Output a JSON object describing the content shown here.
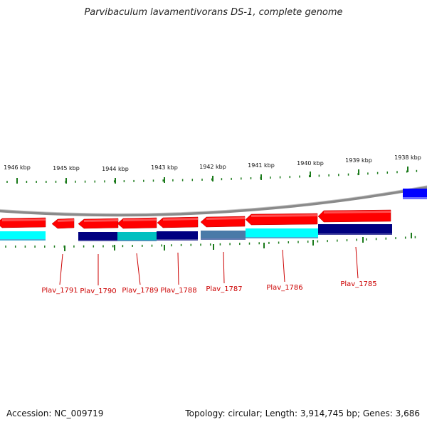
{
  "title": "Parvibaculum lavamentivorans DS-1, complete genome",
  "accession": "Accession: NC_009719",
  "summary": "Topology: circular; Length: 3,914,745 bp; Genes: 3,686",
  "colors": {
    "forward_gene": "#ff0000",
    "backbone": "#8a8a8a",
    "tick": "#1a7a1a",
    "gene_label": "#cc0000",
    "cyan_block": "#00ffff",
    "navy_block": "#000080",
    "teal_block": "#00c0c0",
    "steel_block": "#4a7aa8",
    "blue_block": "#0000ff"
  },
  "kbp_scale": [
    {
      "label": "1946 kbp"
    },
    {
      "label": "1945 kbp"
    },
    {
      "label": "1944 kbp"
    },
    {
      "label": "1943 kbp"
    },
    {
      "label": "1942 kbp"
    },
    {
      "label": "1941 kbp"
    },
    {
      "label": "1940 kbp"
    },
    {
      "label": "1939 kbp"
    },
    {
      "label": "1938 kbp"
    }
  ],
  "genes": [
    {
      "name": "Plav_1791"
    },
    {
      "name": "Plav_1790"
    },
    {
      "name": "Plav_1789"
    },
    {
      "name": "Plav_1788"
    },
    {
      "name": "Plav_1787"
    },
    {
      "name": "Plav_1786"
    },
    {
      "name": "Plav_1785"
    }
  ]
}
